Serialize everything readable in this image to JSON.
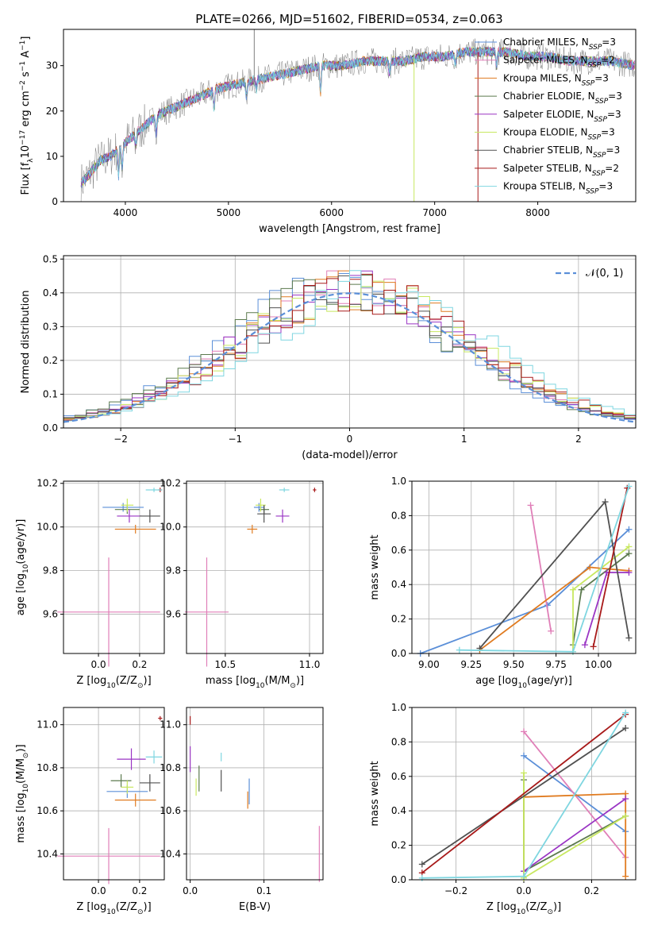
{
  "figure_title": "PLATE=0266, MJD=51602, FIBERID=0534, z=0.063",
  "colors": {
    "Chabrier MILES": "#5b8fd8",
    "Salpeter MILES": "#e07fb8",
    "Kroupa MILES": "#e07b20",
    "Chabrier ELODIE": "#5c7a4e",
    "Salpeter ELODIE": "#9a35c4",
    "Kroupa ELODIE": "#c8e860",
    "Chabrier STELIB": "#505050",
    "Salpeter STELIB": "#a81a1a",
    "Kroupa STELIB": "#7fd6e0",
    "normal": "#5b8fd8",
    "grid": "#b0b0b0"
  },
  "chart_data": [
    {
      "id": "spectrum",
      "type": "line",
      "title": "PLATE=0266, MJD=51602, FIBERID=0534, z=0.063",
      "xlabel": "wavelength [Angstrom, rest frame]",
      "ylabel_parts": [
        "Flux [f",
        "λ",
        "10",
        "−17",
        " erg cm",
        "−2",
        " s",
        "−1",
        " A",
        "−1",
        "]"
      ],
      "xlim": [
        3400,
        8950
      ],
      "ylim": [
        0,
        38
      ],
      "xticks": [
        4000,
        5000,
        6000,
        7000,
        8000
      ],
      "yticks": [
        0,
        10,
        20,
        30
      ],
      "grid": false,
      "legend_position": "right",
      "legend": [
        {
          "name": "Chabrier MILES",
          "nssp": "3"
        },
        {
          "name": "Salpeter MILES",
          "nssp": "2"
        },
        {
          "name": "Kroupa MILES",
          "nssp": "3"
        },
        {
          "name": "Chabrier ELODIE",
          "nssp": "3"
        },
        {
          "name": "Salpeter ELODIE",
          "nssp": "3"
        },
        {
          "name": "Kroupa ELODIE",
          "nssp": "3"
        },
        {
          "name": "Chabrier STELIB",
          "nssp": "3"
        },
        {
          "name": "Salpeter STELIB",
          "nssp": "2"
        },
        {
          "name": "Kroupa STELIB",
          "nssp": "3"
        }
      ],
      "continuum": {
        "x": [
          3570,
          3650,
          3750,
          3850,
          3950,
          4050,
          4150,
          4300,
          4500,
          4700,
          4900,
          5100,
          5300,
          5500,
          5700,
          5900,
          6100,
          6300,
          6500,
          6700,
          6900,
          7100,
          7300,
          7500,
          7700,
          7900,
          8100,
          8300,
          8500,
          8700,
          8950
        ],
        "y": [
          4,
          6,
          9,
          10,
          12,
          14,
          16,
          19,
          21,
          23,
          25,
          26,
          27,
          28,
          29,
          30,
          30,
          31,
          31,
          31,
          32,
          32,
          33,
          33,
          33,
          32,
          32,
          31,
          31,
          31,
          30
        ]
      },
      "sharp_features": [
        {
          "x": 5250,
          "y": 38,
          "series": "data"
        },
        {
          "x": 6800,
          "y": 0,
          "series": "Kroupa ELODIE"
        },
        {
          "x": 7420,
          "y": 0,
          "series": "Salpeter STELIB"
        }
      ]
    },
    {
      "id": "residuals",
      "type": "histogram",
      "xlabel": "(data-model)/error",
      "ylabel": "Normed distribution",
      "xlim": [
        -2.5,
        2.5
      ],
      "ylim": [
        0,
        0.51
      ],
      "xticks": [
        -2,
        -1,
        0,
        1,
        2
      ],
      "xtick_labels": [
        "−2",
        "−1",
        "0",
        "1",
        "2"
      ],
      "yticks": [
        0,
        0.1,
        0.2,
        0.3,
        0.4,
        0.5
      ],
      "ytick_labels": [
        "0.0",
        "0.1",
        "0.2",
        "0.3",
        "0.4",
        "0.5"
      ],
      "grid": true,
      "legend_position": "top-right",
      "reference_curve": {
        "name_parts": [
          "𝒩",
          "(0, 1)"
        ],
        "mean": 0,
        "sigma": 1
      },
      "bin_width": 0.1,
      "bin_start": -2.5
    },
    {
      "id": "age-vs-Z",
      "type": "scatter",
      "xlabel_parts": [
        "Z [log",
        "10",
        "(Z/Z",
        "⊙",
        ")]"
      ],
      "ylabel_parts": [
        "age  [log",
        "10",
        "(age/yr)]"
      ],
      "xlim": [
        -0.17,
        0.32
      ],
      "ylim": [
        9.42,
        10.21
      ],
      "xticks": [
        0.0,
        0.2
      ],
      "xtick_labels": [
        "0.0",
        "0.2"
      ],
      "yticks": [
        9.6,
        9.8,
        10.0,
        10.2
      ],
      "ytick_labels": [
        "9.6",
        "9.8",
        "10.0",
        "10.2"
      ],
      "grid": true,
      "points": [
        {
          "series": "Chabrier MILES",
          "x": 0.12,
          "y": 10.09,
          "xerr": 0.1,
          "yerr": 0.02
        },
        {
          "series": "Salpeter MILES",
          "x": 0.05,
          "y": 9.61,
          "xerr": 0.25,
          "yerr": 0.25
        },
        {
          "series": "Kroupa MILES",
          "x": 0.18,
          "y": 9.99,
          "xerr": 0.1,
          "yerr": 0.02
        },
        {
          "series": "Chabrier ELODIE",
          "x": 0.14,
          "y": 10.08,
          "xerr": 0.06,
          "yerr": 0.02
        },
        {
          "series": "Salpeter ELODIE",
          "x": 0.15,
          "y": 10.05,
          "xerr": 0.06,
          "yerr": 0.03
        },
        {
          "series": "Kroupa ELODIE",
          "x": 0.14,
          "y": 10.1,
          "xerr": 0.03,
          "yerr": 0.03
        },
        {
          "series": "Chabrier STELIB",
          "x": 0.25,
          "y": 10.05,
          "xerr": 0.05,
          "yerr": 0.03
        },
        {
          "series": "Salpeter STELIB",
          "x": 0.3,
          "y": 10.17,
          "xerr": 0.01,
          "yerr": 0.01
        },
        {
          "series": "Kroupa STELIB",
          "x": 0.27,
          "y": 10.17,
          "xerr": 0.04,
          "yerr": 0.01
        }
      ]
    },
    {
      "id": "age-vs-mass",
      "type": "scatter",
      "xlabel_parts": [
        "mass [log",
        "10",
        "(M/M",
        "⊙",
        ")]"
      ],
      "xlim": [
        10.27,
        11.08
      ],
      "ylim": [
        9.42,
        10.21
      ],
      "xticks": [
        10.5,
        11.0
      ],
      "xtick_labels": [
        "10.5",
        "11.0"
      ],
      "yticks": [
        9.6,
        9.8,
        10.0,
        10.2
      ],
      "ytick_labels": [
        "9.6",
        "9.8",
        "10.0",
        "10.2"
      ],
      "grid": true,
      "points": [
        {
          "series": "Chabrier MILES",
          "x": 10.7,
          "y": 10.09,
          "xerr": 0.03,
          "yerr": 0.02
        },
        {
          "series": "Salpeter MILES",
          "x": 10.39,
          "y": 9.61,
          "xerr": 0.13,
          "yerr": 0.25
        },
        {
          "series": "Kroupa MILES",
          "x": 10.66,
          "y": 9.99,
          "xerr": 0.03,
          "yerr": 0.02
        },
        {
          "series": "Chabrier ELODIE",
          "x": 10.73,
          "y": 10.08,
          "xerr": 0.03,
          "yerr": 0.02
        },
        {
          "series": "Salpeter ELODIE",
          "x": 10.84,
          "y": 10.05,
          "xerr": 0.04,
          "yerr": 0.03
        },
        {
          "series": "Kroupa ELODIE",
          "x": 10.71,
          "y": 10.1,
          "xerr": 0.03,
          "yerr": 0.03
        },
        {
          "series": "Chabrier STELIB",
          "x": 10.73,
          "y": 10.06,
          "xerr": 0.04,
          "yerr": 0.04
        },
        {
          "series": "Salpeter STELIB",
          "x": 11.03,
          "y": 10.17,
          "xerr": 0.01,
          "yerr": 0.01
        },
        {
          "series": "Kroupa STELIB",
          "x": 10.85,
          "y": 10.17,
          "xerr": 0.03,
          "yerr": 0.01
        }
      ]
    },
    {
      "id": "mass-weight-vs-age",
      "type": "line",
      "xlabel_parts": [
        "age  [log",
        "10",
        "(age/yr)]"
      ],
      "ylabel": "mass weight",
      "xlim": [
        8.9,
        10.22
      ],
      "ylim": [
        0,
        1
      ],
      "xticks": [
        9.0,
        9.25,
        9.5,
        9.75,
        10.0
      ],
      "xtick_labels": [
        "9.00",
        "9.25",
        "9.50",
        "9.75",
        "10.00"
      ],
      "yticks": [
        0,
        0.2,
        0.4,
        0.6,
        0.8,
        1.0
      ],
      "ytick_labels": [
        "0.0",
        "0.2",
        "0.4",
        "0.6",
        "0.8",
        "1.0"
      ],
      "grid": true,
      "series": [
        {
          "name": "Chabrier MILES",
          "x": [
            8.95,
            9.7,
            10.18
          ],
          "y": [
            0.0,
            0.28,
            0.72
          ]
        },
        {
          "name": "Salpeter MILES",
          "x": [
            9.6,
            9.72
          ],
          "y": [
            0.86,
            0.13
          ]
        },
        {
          "name": "Kroupa MILES",
          "x": [
            9.3,
            9.95,
            10.18
          ],
          "y": [
            0.02,
            0.5,
            0.48
          ]
        },
        {
          "name": "Chabrier ELODIE",
          "x": [
            9.85,
            9.9,
            10.18
          ],
          "y": [
            0.05,
            0.37,
            0.58
          ]
        },
        {
          "name": "Salpeter ELODIE",
          "x": [
            9.92,
            10.05,
            10.18
          ],
          "y": [
            0.05,
            0.47,
            0.47
          ]
        },
        {
          "name": "Kroupa ELODIE",
          "x": [
            9.85,
            9.85,
            10.18
          ],
          "y": [
            0.01,
            0.37,
            0.62
          ]
        },
        {
          "name": "Chabrier STELIB",
          "x": [
            9.3,
            10.04,
            10.18
          ],
          "y": [
            0.03,
            0.88,
            0.09
          ]
        },
        {
          "name": "Salpeter STELIB",
          "x": [
            9.97,
            10.17
          ],
          "y": [
            0.04,
            0.96
          ]
        },
        {
          "name": "Kroupa STELIB",
          "x": [
            9.18,
            9.85,
            10.18
          ],
          "y": [
            0.02,
            0.01,
            0.97
          ]
        }
      ]
    },
    {
      "id": "mass-vs-Z",
      "type": "scatter",
      "xlabel_parts": [
        "Z [log",
        "10",
        "(Z/Z",
        "⊙",
        ")]"
      ],
      "ylabel_parts": [
        "mass [log",
        "10",
        "(M/M",
        "⊙",
        ")]"
      ],
      "xlim": [
        -0.17,
        0.32
      ],
      "ylim": [
        10.28,
        11.08
      ],
      "xticks": [
        0.0,
        0.2
      ],
      "xtick_labels": [
        "0.0",
        "0.2"
      ],
      "yticks": [
        10.4,
        10.6,
        10.8,
        11.0
      ],
      "ytick_labels": [
        "10.4",
        "10.6",
        "10.8",
        "11.0"
      ],
      "grid": true,
      "points": [
        {
          "series": "Chabrier MILES",
          "x": 0.14,
          "y": 10.69,
          "xerr": 0.1,
          "yerr": 0.03
        },
        {
          "series": "Salpeter MILES",
          "x": 0.05,
          "y": 10.39,
          "xerr": 0.25,
          "yerr": 0.13
        },
        {
          "series": "Kroupa MILES",
          "x": 0.18,
          "y": 10.65,
          "xerr": 0.1,
          "yerr": 0.03
        },
        {
          "series": "Chabrier ELODIE",
          "x": 0.11,
          "y": 10.74,
          "xerr": 0.05,
          "yerr": 0.03
        },
        {
          "series": "Salpeter ELODIE",
          "x": 0.16,
          "y": 10.84,
          "xerr": 0.07,
          "yerr": 0.05
        },
        {
          "series": "Kroupa ELODIE",
          "x": 0.14,
          "y": 10.71,
          "xerr": 0.03,
          "yerr": 0.03
        },
        {
          "series": "Chabrier STELIB",
          "x": 0.25,
          "y": 10.73,
          "xerr": 0.05,
          "yerr": 0.04
        },
        {
          "series": "Salpeter STELIB",
          "x": 0.3,
          "y": 11.03,
          "xerr": 0.01,
          "yerr": 0.01
        },
        {
          "series": "Kroupa STELIB",
          "x": 0.27,
          "y": 10.85,
          "xerr": 0.04,
          "yerr": 0.03
        }
      ]
    },
    {
      "id": "mass-vs-EBV",
      "type": "scatter",
      "xlabel": "E(B-V)",
      "xlim": [
        -0.005,
        0.18
      ],
      "ylim": [
        10.28,
        11.08
      ],
      "xticks": [
        0.0,
        0.1
      ],
      "xtick_labels": [
        "0.0",
        "0.1"
      ],
      "yticks": [
        10.4,
        10.6,
        10.8,
        11.0
      ],
      "ytick_labels": [
        "10.4",
        "10.6",
        "10.8",
        "11.0"
      ],
      "grid": true,
      "points": [
        {
          "series": "Chabrier MILES",
          "x": 0.08,
          "y": 10.69,
          "xerr": 0.0,
          "yerr": 0.06
        },
        {
          "series": "Salpeter MILES",
          "x": 0.175,
          "y": 10.4,
          "xerr": 0.0,
          "yerr": 0.13
        },
        {
          "series": "Kroupa MILES",
          "x": 0.078,
          "y": 10.65,
          "xerr": 0.0,
          "yerr": 0.04
        },
        {
          "series": "Chabrier ELODIE",
          "x": 0.012,
          "y": 10.75,
          "xerr": 0.0,
          "yerr": 0.06
        },
        {
          "series": "Salpeter ELODIE",
          "x": 0.0,
          "y": 10.84,
          "xerr": 0.0,
          "yerr": 0.06
        },
        {
          "series": "Kroupa ELODIE",
          "x": 0.008,
          "y": 10.71,
          "xerr": 0.0,
          "yerr": 0.04
        },
        {
          "series": "Chabrier STELIB",
          "x": 0.042,
          "y": 10.74,
          "xerr": 0.0,
          "yerr": 0.05
        },
        {
          "series": "Salpeter STELIB",
          "x": 0.0,
          "y": 11.02,
          "xerr": 0.0,
          "yerr": 0.02
        },
        {
          "series": "Kroupa STELIB",
          "x": 0.042,
          "y": 10.85,
          "xerr": 0.0,
          "yerr": 0.02
        }
      ]
    },
    {
      "id": "mass-weight-vs-Z",
      "type": "line",
      "xlabel_parts": [
        "Z [log",
        "10",
        "(Z/Z",
        "⊙",
        ")]"
      ],
      "ylabel": "mass weight",
      "xlim": [
        -0.33,
        0.33
      ],
      "ylim": [
        0,
        1
      ],
      "xticks": [
        -0.2,
        0.0,
        0.2
      ],
      "xtick_labels": [
        "−0.2",
        "0.0",
        "0.2"
      ],
      "yticks": [
        0,
        0.2,
        0.4,
        0.6,
        0.8,
        1.0
      ],
      "ytick_labels": [
        "0.0",
        "0.2",
        "0.4",
        "0.6",
        "0.8",
        "1.0"
      ],
      "grid": true,
      "series": [
        {
          "name": "Chabrier MILES",
          "x": [
            0.0,
            0.3
          ],
          "y": [
            0.72,
            0.28
          ]
        },
        {
          "name": "Salpeter MILES",
          "x": [
            0.0,
            0.3
          ],
          "y": [
            0.86,
            0.13
          ]
        },
        {
          "name": "Kroupa MILES",
          "x": [
            0.0,
            0.0,
            0.3,
            0.3
          ],
          "y": [
            0.02,
            0.48,
            0.5,
            0.02
          ]
        },
        {
          "name": "Chabrier ELODIE",
          "x": [
            0.0,
            0.0,
            0.3
          ],
          "y": [
            0.58,
            0.05,
            0.37
          ]
        },
        {
          "name": "Salpeter ELODIE",
          "x": [
            0.0,
            0.3
          ],
          "y": [
            0.05,
            0.47
          ]
        },
        {
          "name": "Kroupa ELODIE",
          "x": [
            0.0,
            0.0,
            0.3
          ],
          "y": [
            0.62,
            0.01,
            0.37
          ]
        },
        {
          "name": "Chabrier STELIB",
          "x": [
            -0.3,
            0.3
          ],
          "y": [
            0.09,
            0.88
          ]
        },
        {
          "name": "Salpeter STELIB",
          "x": [
            -0.3,
            0.3
          ],
          "y": [
            0.04,
            0.96
          ]
        },
        {
          "name": "Kroupa STELIB",
          "x": [
            -0.3,
            0.0,
            0.3
          ],
          "y": [
            0.01,
            0.02,
            0.97
          ]
        }
      ]
    }
  ]
}
